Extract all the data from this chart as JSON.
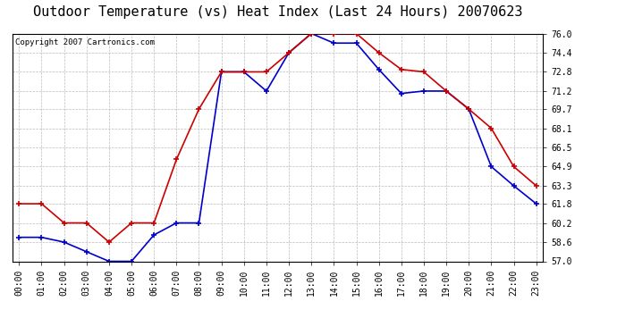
{
  "title": "Outdoor Temperature (vs) Heat Index (Last 24 Hours) 20070623",
  "copyright_text": "Copyright 2007 Cartronics.com",
  "hours": [
    "00:00",
    "01:00",
    "02:00",
    "03:00",
    "04:00",
    "05:00",
    "06:00",
    "07:00",
    "08:00",
    "09:00",
    "10:00",
    "11:00",
    "12:00",
    "13:00",
    "14:00",
    "15:00",
    "16:00",
    "17:00",
    "18:00",
    "19:00",
    "20:00",
    "21:00",
    "22:00",
    "23:00"
  ],
  "heat_index": [
    61.8,
    61.8,
    60.2,
    60.2,
    58.6,
    60.2,
    60.2,
    65.5,
    69.7,
    72.8,
    72.8,
    72.8,
    74.4,
    76.0,
    76.0,
    76.0,
    74.4,
    73.0,
    72.8,
    71.2,
    69.7,
    68.1,
    64.9,
    63.3
  ],
  "outdoor_temp": [
    59.0,
    59.0,
    58.6,
    57.8,
    57.0,
    57.0,
    59.2,
    60.2,
    60.2,
    72.8,
    72.8,
    71.2,
    74.4,
    76.0,
    75.2,
    75.2,
    73.0,
    71.0,
    71.2,
    71.2,
    69.7,
    64.9,
    63.3,
    61.8
  ],
  "heat_index_color": "#cc0000",
  "outdoor_temp_color": "#0000cc",
  "ylim_min": 57.0,
  "ylim_max": 76.0,
  "yticks": [
    57.0,
    58.6,
    60.2,
    61.8,
    63.3,
    64.9,
    66.5,
    68.1,
    69.7,
    71.2,
    72.8,
    74.4,
    76.0
  ],
  "bg_color": "#ffffff",
  "grid_color": "#bbbbbb",
  "marker": "+",
  "marker_size": 5,
  "linewidth": 1.2,
  "title_fontsize": 11,
  "tick_fontsize": 7,
  "copyright_fontsize": 6.5
}
